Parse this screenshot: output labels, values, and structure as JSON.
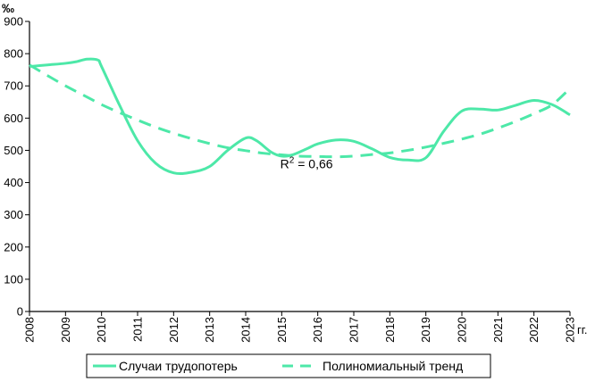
{
  "chart_data": {
    "type": "line",
    "y_unit": "‰",
    "x_unit": "гг.",
    "ylim": [
      0,
      900
    ],
    "y_ticks": [
      0,
      100,
      200,
      300,
      400,
      500,
      600,
      700,
      800,
      900
    ],
    "xlim": [
      2008,
      2023
    ],
    "x_ticks": [
      2008,
      2009,
      2010,
      2011,
      2012,
      2013,
      2014,
      2015,
      2016,
      2017,
      2018,
      2019,
      2020,
      2021,
      2022,
      2023
    ],
    "grid": false,
    "legend_position": "bottom",
    "annotation": {
      "base": "R",
      "exponent": "2",
      "value": " = 0,66",
      "x": 2016,
      "y": 445
    },
    "series": [
      {
        "name": "Случаи трудопотерь",
        "style": "solid",
        "color": "#4de8a8",
        "x": [
          2008,
          2008.5,
          2009,
          2009.3,
          2009.6,
          2009.9,
          2010,
          2010.5,
          2011,
          2011.5,
          2012,
          2012.5,
          2013,
          2013.5,
          2014,
          2014.3,
          2014.7,
          2015,
          2015.3,
          2015.7,
          2016,
          2016.5,
          2017,
          2017.5,
          2018,
          2018.5,
          2019,
          2019.5,
          2020,
          2020.5,
          2021,
          2021.5,
          2022,
          2022.5,
          2023
        ],
        "y": [
          760,
          765,
          770,
          775,
          783,
          780,
          760,
          640,
          530,
          460,
          430,
          432,
          450,
          500,
          538,
          530,
          495,
          482,
          486,
          505,
          520,
          532,
          528,
          505,
          478,
          470,
          477,
          560,
          622,
          628,
          625,
          640,
          655,
          642,
          610
        ]
      },
      {
        "name": "Полиномиальный тренд",
        "style": "dashed",
        "color": "#4de8a8",
        "x": [
          2008,
          2008.5,
          2009,
          2009.5,
          2010,
          2010.5,
          2011,
          2011.5,
          2012,
          2012.5,
          2013,
          2013.5,
          2014,
          2014.5,
          2015,
          2015.5,
          2016,
          2016.5,
          2017,
          2017.5,
          2018,
          2018.5,
          2019,
          2019.5,
          2020,
          2020.5,
          2021,
          2021.5,
          2022,
          2022.5,
          2023
        ],
        "y": [
          765,
          732,
          700,
          671,
          642,
          617,
          594,
          572,
          553,
          536,
          521,
          508,
          499,
          491,
          486,
          482,
          481,
          480,
          482,
          487,
          492,
          500,
          510,
          522,
          535,
          550,
          569,
          590,
          614,
          641,
          692
        ]
      }
    ]
  }
}
